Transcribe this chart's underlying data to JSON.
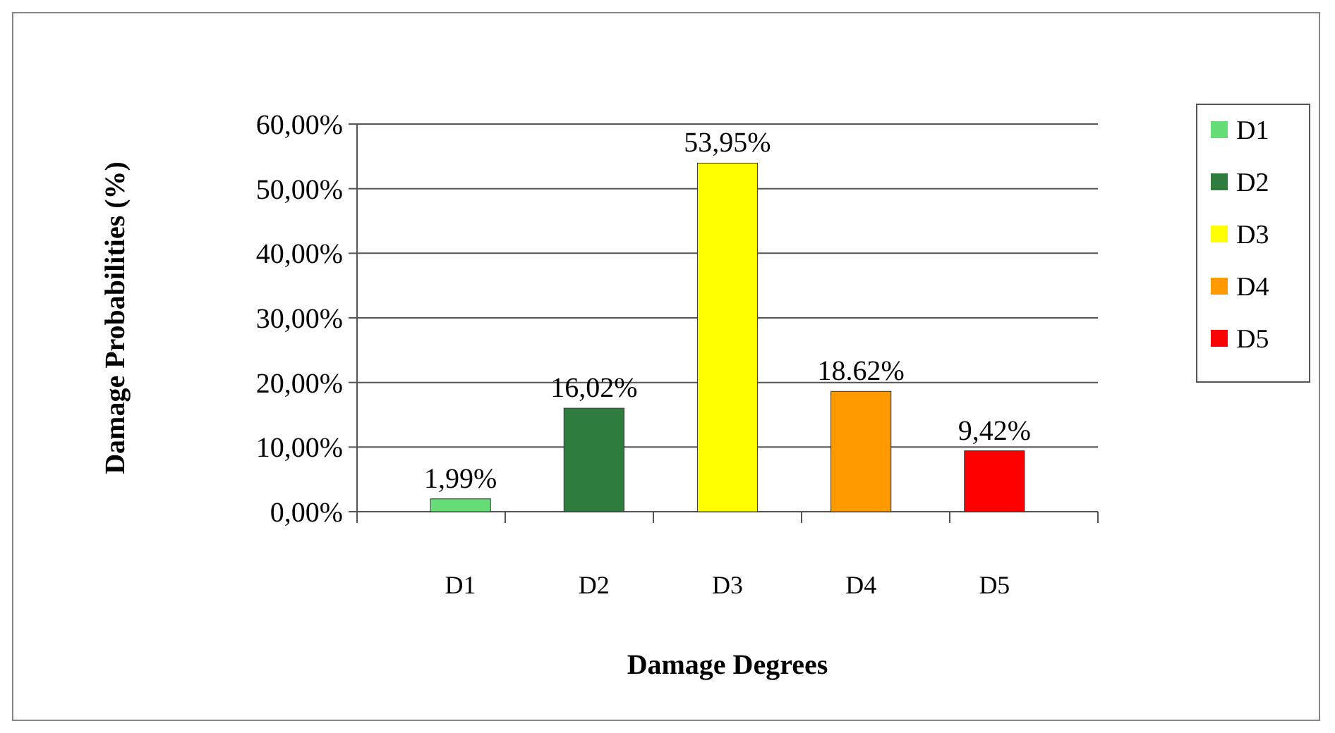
{
  "chart_data": {
    "type": "bar",
    "xlabel": "Damage Degrees",
    "ylabel": "Damage Probabilities (%)",
    "categories": [
      "D1",
      "D2",
      "D3",
      "D4",
      "D5"
    ],
    "stacked": true,
    "series": [
      {
        "name": "D1",
        "color": "#66dd77",
        "values": [
          1.99,
          null,
          null,
          null,
          null
        ],
        "value_labels": [
          "1,99%",
          null,
          null,
          null,
          null
        ]
      },
      {
        "name": "D2",
        "color": "#2e7d3e",
        "values": [
          null,
          16.02,
          null,
          null,
          null
        ],
        "value_labels": [
          null,
          "16,02%",
          null,
          null,
          null
        ]
      },
      {
        "name": "D3",
        "color": "#ffff00",
        "values": [
          null,
          null,
          53.95,
          null,
          null
        ],
        "value_labels": [
          null,
          null,
          "53,95%",
          null,
          null
        ]
      },
      {
        "name": "D4",
        "color": "#ff9900",
        "values": [
          null,
          null,
          null,
          18.62,
          null
        ],
        "value_labels": [
          null,
          null,
          null,
          "18.62%",
          null
        ]
      },
      {
        "name": "D5",
        "color": "#ff0000",
        "values": [
          null,
          null,
          null,
          null,
          9.42
        ],
        "value_labels": [
          null,
          null,
          null,
          null,
          "9,42%"
        ]
      }
    ],
    "ylim": [
      0,
      60
    ],
    "yticks": [
      {
        "value": 0,
        "label": "0,00%"
      },
      {
        "value": 10,
        "label": "10,00%"
      },
      {
        "value": 20,
        "label": "20,00%"
      },
      {
        "value": 30,
        "label": "30,00%"
      },
      {
        "value": 40,
        "label": "40,00%"
      },
      {
        "value": 50,
        "label": "50,00%"
      },
      {
        "value": 60,
        "label": "60,00%"
      }
    ],
    "grid": "y",
    "legend": "right"
  }
}
